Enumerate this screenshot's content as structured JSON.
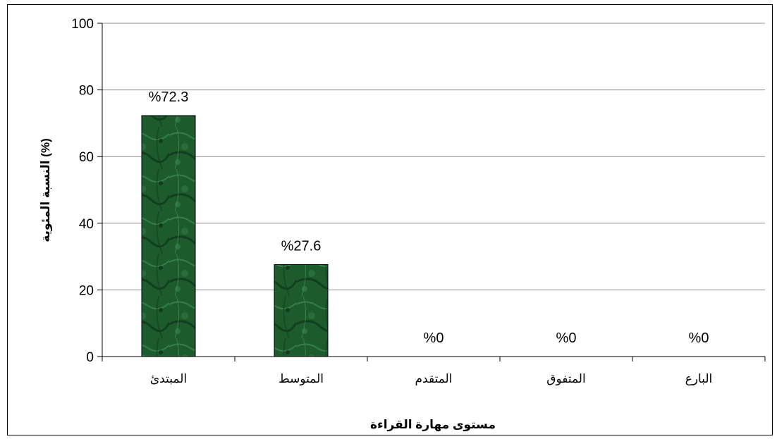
{
  "chart_data": {
    "type": "bar",
    "categories": [
      "المبتدئ",
      "المتوسط",
      "المتقدم",
      "المتفوق",
      "البارع"
    ],
    "values": [
      72.3,
      27.6,
      0,
      0,
      0
    ],
    "data_labels": [
      "%72.3",
      "%27.6",
      "%0",
      "%0",
      "%0"
    ],
    "xlabel": "مستوى مهارة القراءة",
    "ylabel": "النسبة المئوية (%)",
    "ylim": [
      0,
      100
    ],
    "yticks": [
      0,
      20,
      40,
      60,
      80,
      100
    ],
    "grid": true,
    "bar_color": "#1f5a2e",
    "bar_pattern": "green marble texture"
  }
}
